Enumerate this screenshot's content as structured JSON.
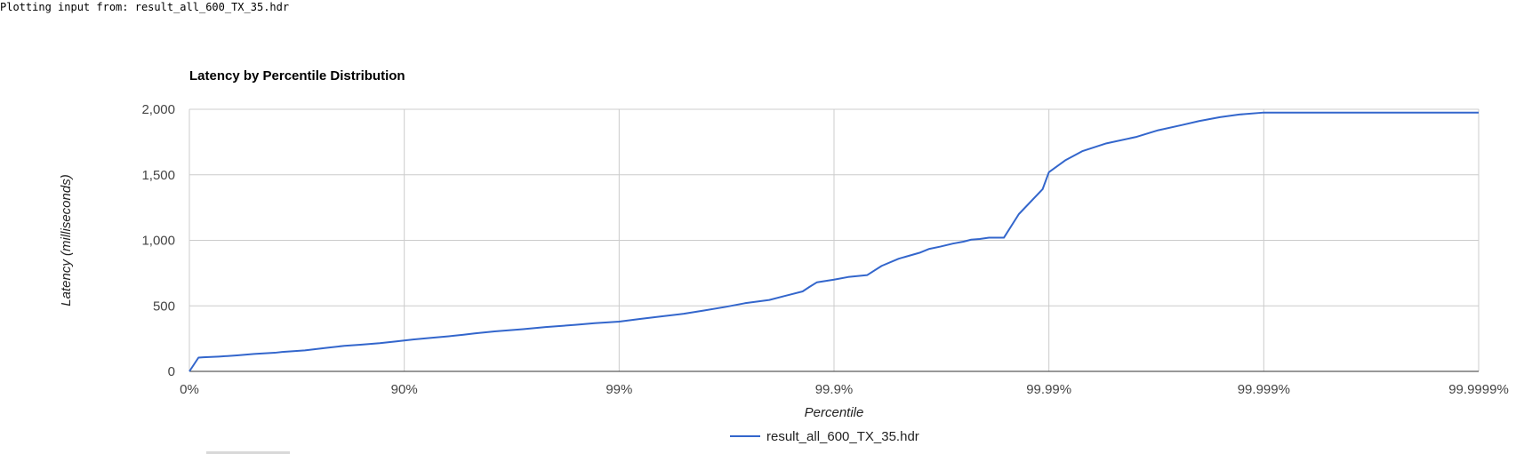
{
  "source_text": "Plotting input from: result_all_600_TX_35.hdr",
  "chart_data": {
    "type": "line",
    "title": "Latency by Percentile Distribution",
    "xlabel": "Percentile",
    "ylabel": "Latency (milliseconds)",
    "x_scale": "log10(1/(1-percentile))",
    "x_ticks": [
      "0%",
      "90%",
      "99%",
      "99.9%",
      "99.99%",
      "99.999%",
      "99.9999%"
    ],
    "xlim": [
      "0%",
      "99.9999%"
    ],
    "ylim": [
      0,
      2000
    ],
    "y_ticks": [
      "0",
      "500",
      "1,000",
      "1,500",
      "2,000"
    ],
    "grid": true,
    "legend_position": "bottom",
    "series": [
      {
        "name": "result_all_600_TX_35.hdr",
        "color": "#3366cc",
        "percentiles": [
          0,
          9.3,
          14,
          27,
          40,
          50,
          60,
          63,
          71,
          77,
          81,
          84,
          87,
          89,
          90.9,
          92.4,
          93.8,
          94.7,
          95.3,
          96.2,
          97.2,
          97.8,
          98.4,
          98.7,
          99.0,
          99.2,
          99.37,
          99.5,
          99.6,
          99.68,
          99.74,
          99.8,
          99.83,
          99.86,
          99.87,
          99.88,
          99.9,
          99.914,
          99.93,
          99.94,
          99.95,
          99.96,
          99.964,
          99.968,
          99.972,
          99.975,
          99.977,
          99.979,
          99.981,
          99.9838,
          99.9862,
          99.9893,
          99.99,
          99.9916,
          99.993,
          99.9946,
          99.9961,
          99.9969,
          99.9976,
          99.998,
          99.9984,
          99.9987,
          99.999,
          99.9992,
          99.99935,
          99.9999
        ],
        "latency_ms": [
          0,
          105,
          108,
          113,
          122,
          133,
          142,
          148,
          160,
          180,
          195,
          203,
          215,
          228,
          243,
          255,
          268,
          280,
          290,
          305,
          322,
          338,
          355,
          368,
          380,
          400,
          420,
          440,
          465,
          492,
          520,
          545,
          575,
          610,
          645,
          680,
          700,
          720,
          735,
          805,
          860,
          905,
          935,
          952,
          975,
          990,
          1005,
          1010,
          1020,
          1020,
          1200,
          1390,
          1520,
          1610,
          1680,
          1740,
          1790,
          1840,
          1880,
          1910,
          1940,
          1960,
          1975,
          1975,
          1975,
          1975
        ]
      }
    ]
  }
}
